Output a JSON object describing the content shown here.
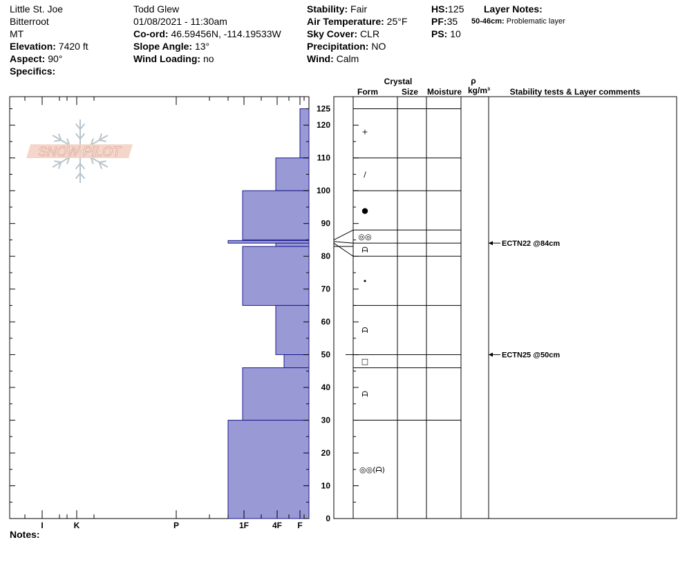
{
  "header": {
    "location": "Little St. Joe",
    "range": "Bitterroot",
    "state": "MT",
    "elevation_label": "Elevation:",
    "elevation_value": "7420 ft",
    "aspect_label": "Aspect:",
    "aspect_value": "90°",
    "specifics_label": "Specifics:",
    "observer": "Todd Glew",
    "datetime": "01/08/2021 - 11:30am",
    "coord_label": "Co-ord:",
    "coord_value": "46.59456N, -114.19533W",
    "slope_label": "Slope Angle:",
    "slope_value": "13°",
    "wind_loading_label": "Wind Loading:",
    "wind_loading_value": "no",
    "stability_label": "Stability:",
    "stability_value": "Fair",
    "air_temp_label": "Air Temperature:",
    "air_temp_value": "25°F",
    "sky_label": "Sky Cover:",
    "sky_value": "CLR",
    "precip_label": "Precipitation:",
    "precip_value": "NO",
    "wind_label": "Wind:",
    "wind_value": "Calm",
    "hs_label": "HS:",
    "hs_value": "125",
    "pf_label": "PF:",
    "pf_value": "35",
    "ps_label": "PS:",
    "ps_value": "10",
    "layer_notes_label": "Layer Notes:",
    "layer_note_range": "50-46cm:",
    "layer_note_text": "Problematic layer"
  },
  "table_headers": {
    "crystal": "Crystal",
    "form": "Form",
    "size": "Size",
    "moisture": "Moisture",
    "rho": "ρ",
    "density_unit": "kg/m³",
    "stability": "Stability tests & Layer comments"
  },
  "logo_text": "SNOW PILOT",
  "notes_label": "Notes:",
  "colors": {
    "bar_fill": "#9999d6",
    "bar_stroke": "#1a1a8c",
    "line": "#000000"
  },
  "chart_data": {
    "type": "bar",
    "orientation": "horizontal",
    "description_units": "depth in cm from ground (0) to surface (HS 125); hardness index I/K/P/1F/4F/F",
    "y_axis": {
      "range": [
        0,
        125
      ],
      "ticks": [
        0,
        10,
        20,
        30,
        40,
        50,
        60,
        70,
        80,
        90,
        100,
        110,
        120,
        125
      ]
    },
    "x_axis": {
      "tick_labels": [
        "I",
        "K",
        "P",
        "1F",
        "4F",
        "F"
      ],
      "minor_tick_count": 8
    },
    "hardness_layers": [
      {
        "top": 125,
        "bottom": 110,
        "hardness": "F"
      },
      {
        "top": 110,
        "bottom": 100,
        "hardness": "4F"
      },
      {
        "top": 100,
        "bottom": 85,
        "hardness": "1F"
      },
      {
        "top": 84.8,
        "bottom": 84,
        "hardness": "1F-"
      },
      {
        "top": 84,
        "bottom": 83,
        "hardness": "4F"
      },
      {
        "top": 83,
        "bottom": 65,
        "hardness": "1F"
      },
      {
        "top": 65,
        "bottom": 50,
        "hardness": "4F"
      },
      {
        "top": 50,
        "bottom": 46,
        "hardness": "4F+"
      },
      {
        "top": 46,
        "bottom": 30,
        "hardness": "1F"
      },
      {
        "top": 30,
        "bottom": 0,
        "hardness": "1F-"
      }
    ],
    "hardness_positions": {
      "F": 434,
      "4F+": 411,
      "4F": 399,
      "1F": 351,
      "1F-": 330
    },
    "layer_boundaries": [
      125,
      110,
      100,
      88,
      84,
      80,
      65,
      50,
      46,
      30,
      0
    ],
    "grain_forms": [
      {
        "depth": 118,
        "symbol": "+"
      },
      {
        "depth": 105,
        "symbol": "/"
      },
      {
        "depth": 94,
        "symbol": "●"
      },
      {
        "depth": 86,
        "symbol": "◎◎"
      },
      {
        "depth": 82,
        "symbol": "ᗩ"
      },
      {
        "depth": 72.5,
        "symbol": "•"
      },
      {
        "depth": 57.5,
        "symbol": "ᗩ"
      },
      {
        "depth": 48,
        "symbol": "□"
      },
      {
        "depth": 38,
        "symbol": "ᗩ"
      },
      {
        "depth": 15,
        "symbol": "◎◎(ᗩ)"
      }
    ],
    "stability_tests": [
      {
        "depth": 84,
        "label": "ECTN22 @84cm"
      },
      {
        "depth": 50,
        "label": "ECTN25 @50cm"
      }
    ]
  }
}
